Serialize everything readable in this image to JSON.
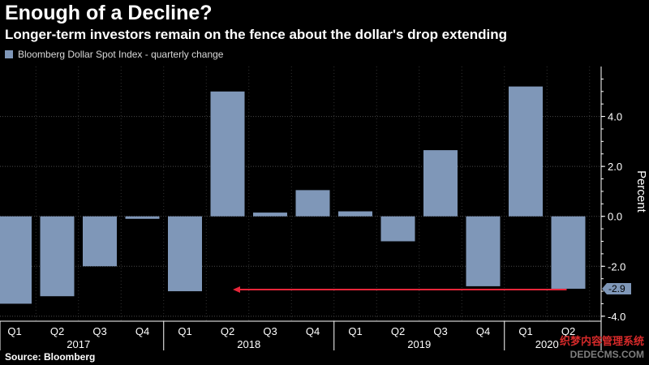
{
  "chart_data": {
    "type": "bar",
    "title": "Enough of a Decline?",
    "subtitle": "Longer-term investors remain on the fence about the dollar's drop extending",
    "legend": [
      "Bloomberg Dollar Spot Index - quarterly change"
    ],
    "categories": [
      "Q1",
      "Q2",
      "Q3",
      "Q4",
      "Q1",
      "Q2",
      "Q3",
      "Q4",
      "Q1",
      "Q2",
      "Q3",
      "Q4",
      "Q1",
      "Q2"
    ],
    "years": [
      {
        "label": "2017",
        "start": 0,
        "end": 3
      },
      {
        "label": "2018",
        "start": 4,
        "end": 7
      },
      {
        "label": "2019",
        "start": 8,
        "end": 11
      },
      {
        "label": "2020",
        "start": 12,
        "end": 13
      }
    ],
    "series": [
      {
        "name": "Bloomberg Dollar Spot Index - quarterly change",
        "values": [
          -3.5,
          -3.2,
          -2.0,
          -0.1,
          -3.0,
          5.0,
          0.15,
          1.05,
          0.2,
          -1.0,
          2.65,
          -2.8,
          5.2,
          -2.9
        ]
      }
    ],
    "ylabel": "Percent",
    "ylim": [
      -4.2,
      6.0
    ],
    "yticks": [
      -4.0,
      -2.0,
      0.0,
      2.0,
      4.0
    ],
    "ytick_labels": [
      "-4.0",
      "-2.0",
      "0.0",
      "2.0",
      "4.0"
    ],
    "callout_label": "-2.9",
    "grid": true,
    "colors": {
      "bar": "#7f97b8",
      "arrow": "#e8263a",
      "grid": "#4a4a4a",
      "background": "#000000"
    }
  },
  "source": "Source: Bloomberg",
  "watermark": {
    "line1": "织梦内容管理系统",
    "line2": "DEDECMS.COM"
  }
}
